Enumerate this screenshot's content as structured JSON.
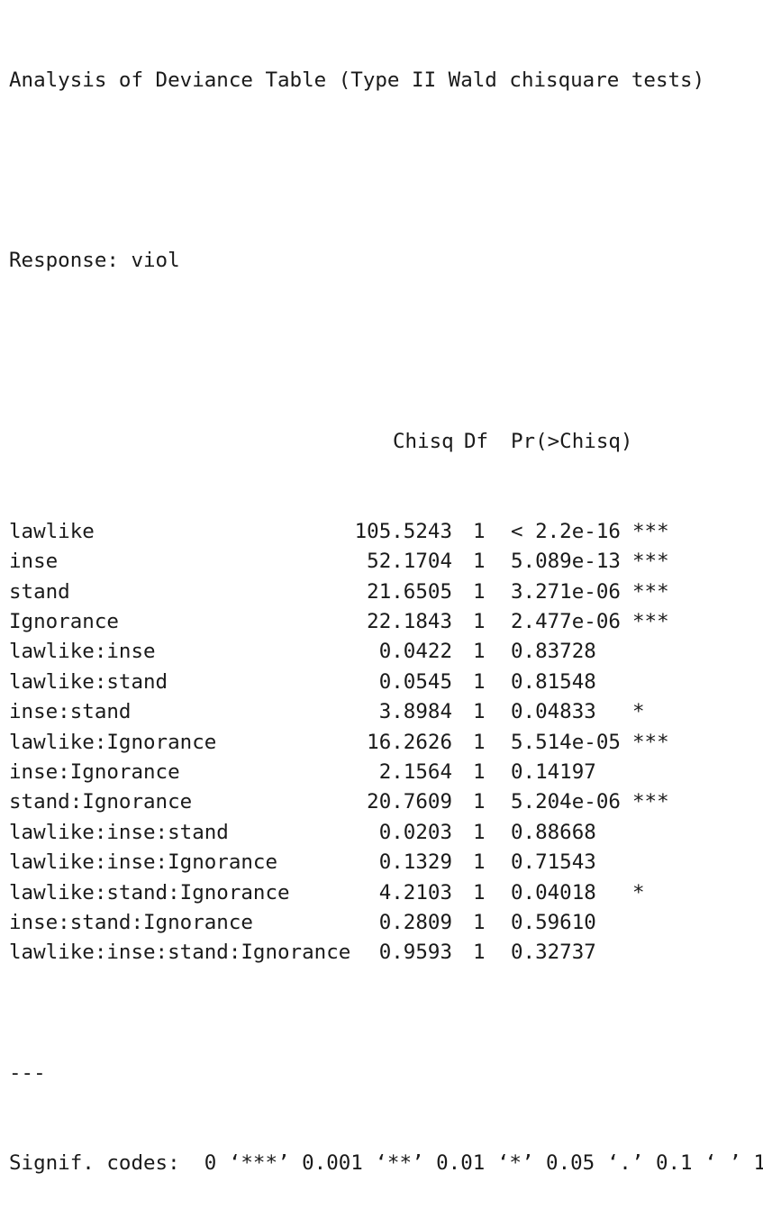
{
  "title": "Analysis of Deviance Table (Type II Wald chisquare tests)",
  "response": "Response: viol",
  "headers": {
    "chisq": "Chisq",
    "df": "Df",
    "pr": "Pr(>Chisq)"
  },
  "rows": [
    {
      "term": "lawlike",
      "chisq": "105.5243",
      "df": "1",
      "p": "< 2.2e-16",
      "sig": "***"
    },
    {
      "term": "inse",
      "chisq": "52.1704",
      "df": "1",
      "p": "5.089e-13",
      "sig": "***"
    },
    {
      "term": "stand",
      "chisq": "21.6505",
      "df": "1",
      "p": "3.271e-06",
      "sig": "***"
    },
    {
      "term": "Ignorance",
      "chisq": "22.1843",
      "df": "1",
      "p": "2.477e-06",
      "sig": "***"
    },
    {
      "term": "lawlike:inse",
      "chisq": "0.0422",
      "df": "1",
      "p": "0.83728",
      "sig": ""
    },
    {
      "term": "lawlike:stand",
      "chisq": "0.0545",
      "df": "1",
      "p": "0.81548",
      "sig": ""
    },
    {
      "term": "inse:stand",
      "chisq": "3.8984",
      "df": "1",
      "p": "0.04833",
      "sig": "*"
    },
    {
      "term": "lawlike:Ignorance",
      "chisq": "16.2626",
      "df": "1",
      "p": "5.514e-05",
      "sig": "***"
    },
    {
      "term": "inse:Ignorance",
      "chisq": "2.1564",
      "df": "1",
      "p": "0.14197",
      "sig": ""
    },
    {
      "term": "stand:Ignorance",
      "chisq": "20.7609",
      "df": "1",
      "p": "5.204e-06",
      "sig": "***"
    },
    {
      "term": "lawlike:inse:stand",
      "chisq": "0.0203",
      "df": "1",
      "p": "0.88668",
      "sig": ""
    },
    {
      "term": "lawlike:inse:Ignorance",
      "chisq": "0.1329",
      "df": "1",
      "p": "0.71543",
      "sig": ""
    },
    {
      "term": "lawlike:stand:Ignorance",
      "chisq": "4.2103",
      "df": "1",
      "p": "0.04018",
      "sig": "*"
    },
    {
      "term": "inse:stand:Ignorance",
      "chisq": "0.2809",
      "df": "1",
      "p": "0.59610",
      "sig": ""
    },
    {
      "term": "lawlike:inse:stand:Ignorance",
      "chisq": "0.9593",
      "df": "1",
      "p": "0.32737",
      "sig": ""
    }
  ],
  "separator": "---",
  "signif_codes": "Signif. codes:  0 ‘***’ 0.001 ‘**’ 0.01 ‘*’ 0.05 ‘.’ 0.1 ‘ ’ 1"
}
